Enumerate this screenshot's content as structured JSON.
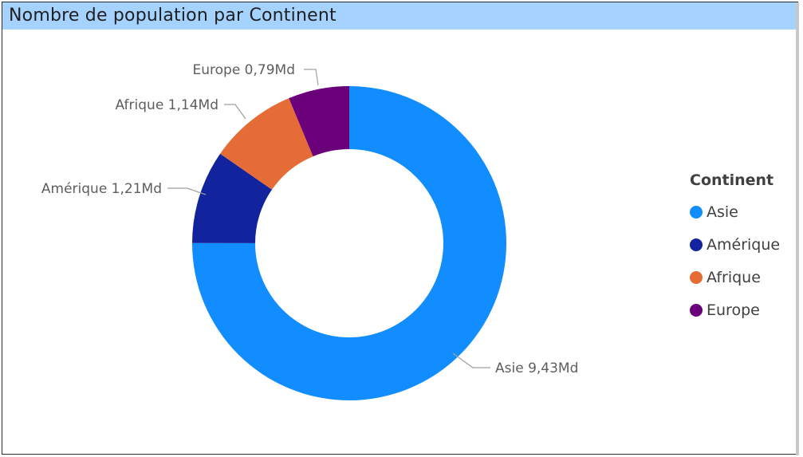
{
  "visual": {
    "title": "Nombre de population par Continent",
    "title_bar_color": "#a6d2ff"
  },
  "chart_data": {
    "type": "pie",
    "variant": "donut",
    "title": "Nombre de population par Continent",
    "unit": "Md",
    "start_angle": "12 o'clock, clockwise",
    "slices": [
      {
        "label": "Asie",
        "value": 9.43,
        "data_label": "Asie 9,43Md",
        "color": "#118dff"
      },
      {
        "label": "Amérique",
        "value": 1.21,
        "data_label": "Amérique 1,21Md",
        "color": "#12239e"
      },
      {
        "label": "Afrique",
        "value": 1.14,
        "data_label": "Afrique 1,14Md",
        "color": "#e66c37"
      },
      {
        "label": "Europe",
        "value": 0.79,
        "data_label": "Europe 0,79Md",
        "color": "#6b007b"
      }
    ],
    "legend": {
      "title": "Continent",
      "placement": "right",
      "items": [
        "Asie",
        "Amérique",
        "Afrique",
        "Europe"
      ]
    }
  }
}
